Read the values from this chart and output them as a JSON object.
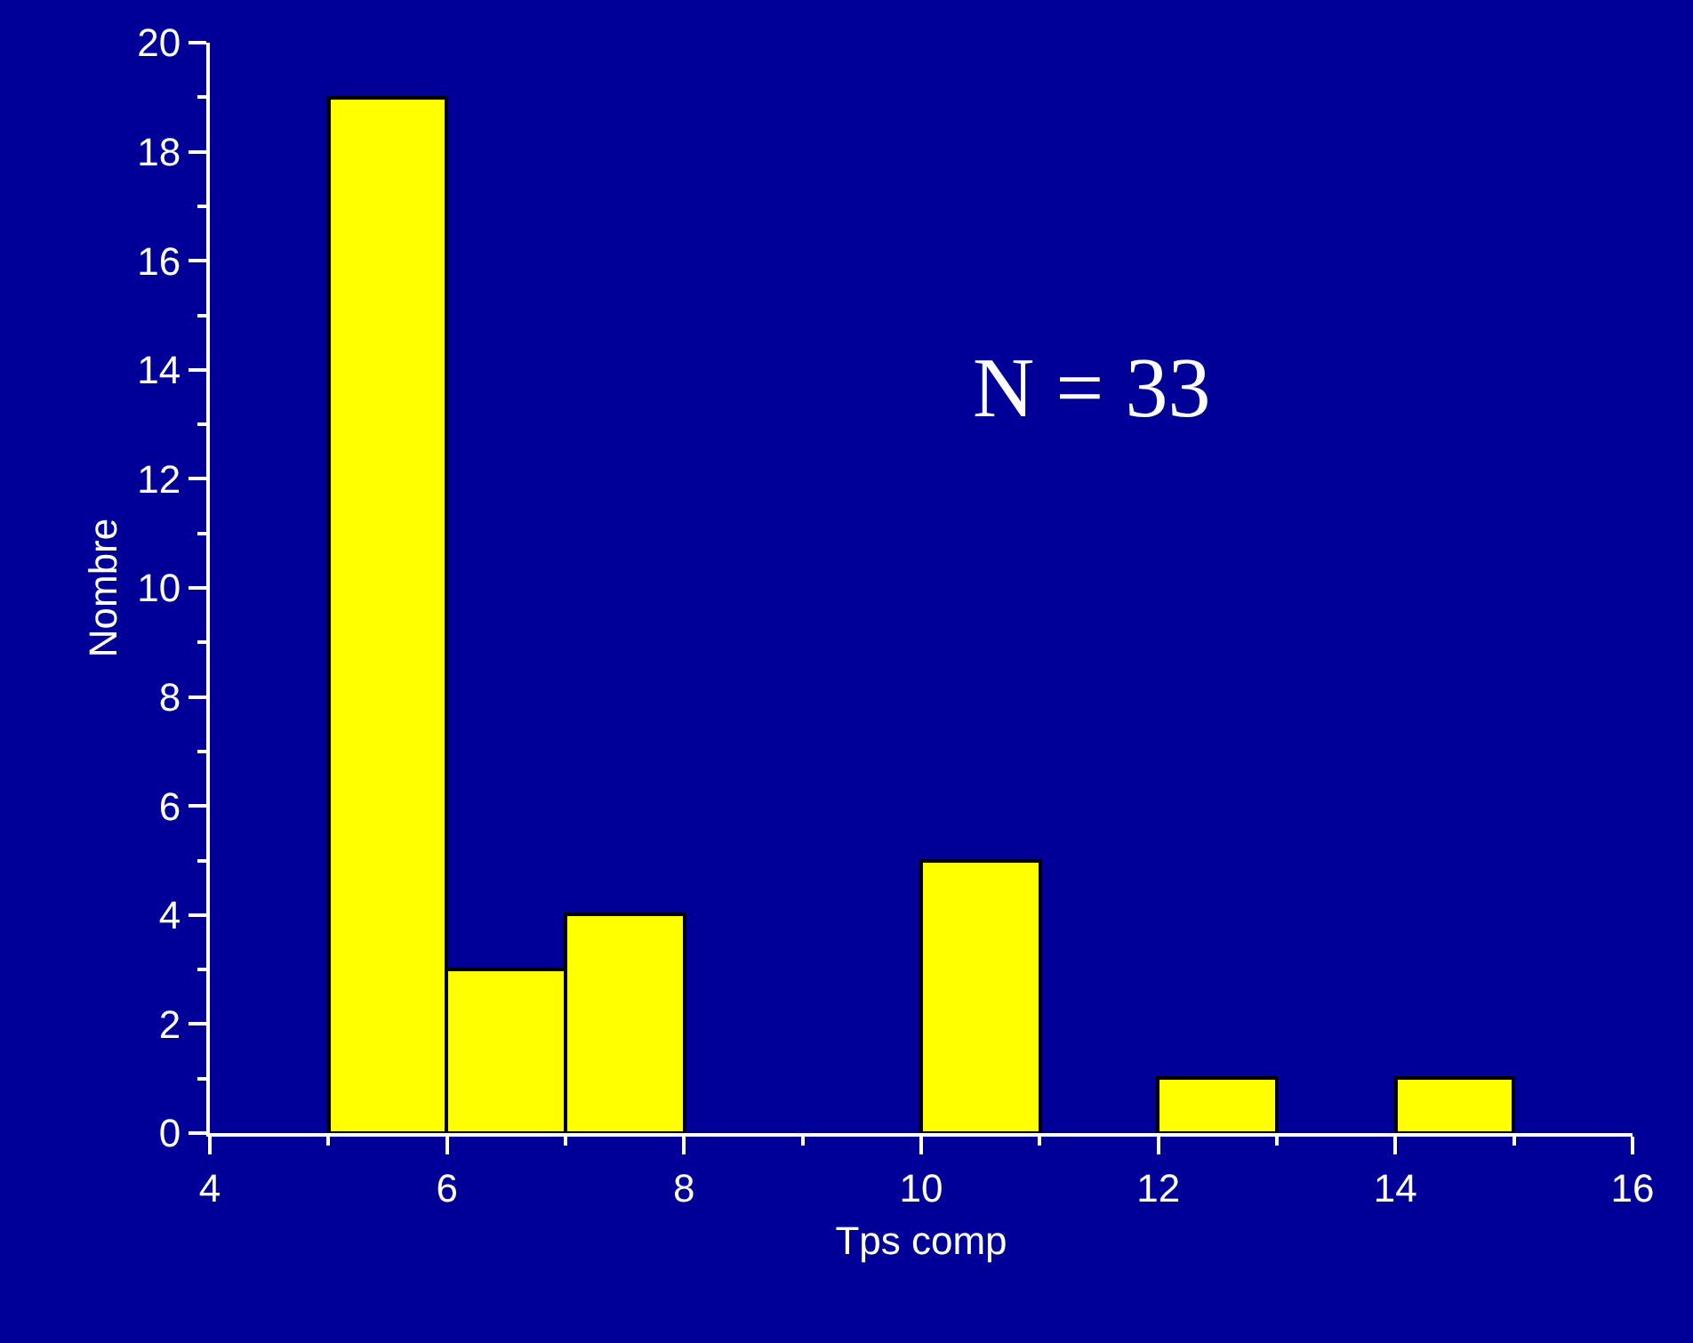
{
  "chart_data": {
    "type": "histogram",
    "xlabel": "Tps comp",
    "ylabel": "Nombre",
    "bins": [
      5,
      6,
      7,
      8,
      9,
      10,
      11,
      12,
      13,
      14,
      15
    ],
    "values": [
      19,
      3,
      4,
      0,
      0,
      5,
      0,
      1,
      0,
      1
    ],
    "color": "#ffff00",
    "xlim": [
      4,
      16
    ],
    "xticks": [
      4,
      6,
      8,
      10,
      12,
      14,
      16
    ],
    "ylim": [
      0,
      20
    ],
    "yticks": [
      0,
      2,
      4,
      6,
      8,
      10,
      12,
      14,
      16,
      18,
      20
    ],
    "grid": false,
    "annotations": [
      "N = 33"
    ]
  }
}
